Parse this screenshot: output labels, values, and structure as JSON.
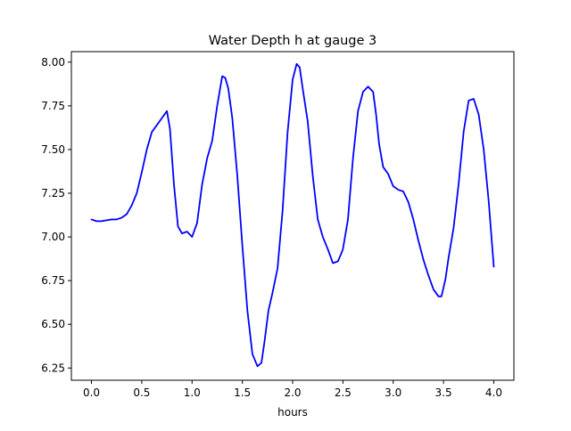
{
  "chart_data": {
    "type": "line",
    "title": "Water Depth h at gauge 3",
    "xlabel": "hours",
    "ylabel": "",
    "xlim": [
      -0.2,
      4.2
    ],
    "ylim": [
      6.18,
      8.06
    ],
    "xticks": [
      0.0,
      0.5,
      1.0,
      1.5,
      2.0,
      2.5,
      3.0,
      3.5,
      4.0
    ],
    "xtick_labels": [
      "0.0",
      "0.5",
      "1.0",
      "1.5",
      "2.0",
      "2.5",
      "3.0",
      "3.5",
      "4.0"
    ],
    "yticks": [
      6.25,
      6.5,
      6.75,
      7.0,
      7.25,
      7.5,
      7.75,
      8.0
    ],
    "ytick_labels": [
      "6.25",
      "6.50",
      "6.75",
      "7.00",
      "7.25",
      "7.50",
      "7.75",
      "8.00"
    ],
    "grid": false,
    "series": [
      {
        "name": "",
        "color": "#0000ff",
        "x": [
          0.0,
          0.05,
          0.1,
          0.15,
          0.2,
          0.25,
          0.3,
          0.35,
          0.4,
          0.45,
          0.5,
          0.55,
          0.6,
          0.65,
          0.7,
          0.75,
          0.78,
          0.82,
          0.86,
          0.9,
          0.95,
          1.0,
          1.05,
          1.1,
          1.15,
          1.2,
          1.25,
          1.3,
          1.33,
          1.36,
          1.4,
          1.45,
          1.5,
          1.55,
          1.6,
          1.65,
          1.69,
          1.72,
          1.76,
          1.8,
          1.85,
          1.9,
          1.95,
          2.0,
          2.04,
          2.07,
          2.1,
          2.15,
          2.2,
          2.25,
          2.3,
          2.35,
          2.4,
          2.45,
          2.48,
          2.5,
          2.55,
          2.6,
          2.65,
          2.7,
          2.75,
          2.8,
          2.83,
          2.86,
          2.9,
          2.95,
          3.0,
          3.05,
          3.1,
          3.15,
          3.2,
          3.25,
          3.3,
          3.35,
          3.4,
          3.45,
          3.48,
          3.52,
          3.55,
          3.6,
          3.65,
          3.7,
          3.75,
          3.8,
          3.85,
          3.9,
          3.95,
          4.0
        ],
        "y": [
          7.1,
          7.09,
          7.09,
          7.095,
          7.1,
          7.1,
          7.11,
          7.13,
          7.18,
          7.25,
          7.37,
          7.5,
          7.6,
          7.64,
          7.68,
          7.72,
          7.62,
          7.3,
          7.06,
          7.02,
          7.03,
          7.0,
          7.08,
          7.3,
          7.45,
          7.55,
          7.75,
          7.92,
          7.91,
          7.85,
          7.68,
          7.35,
          6.95,
          6.58,
          6.33,
          6.26,
          6.28,
          6.4,
          6.58,
          6.68,
          6.82,
          7.15,
          7.6,
          7.9,
          7.99,
          7.97,
          7.85,
          7.66,
          7.35,
          7.1,
          7.0,
          6.93,
          6.85,
          6.86,
          6.9,
          6.93,
          7.1,
          7.45,
          7.72,
          7.83,
          7.86,
          7.83,
          7.7,
          7.53,
          7.4,
          7.36,
          7.29,
          7.27,
          7.26,
          7.2,
          7.1,
          6.98,
          6.87,
          6.78,
          6.7,
          6.66,
          6.66,
          6.76,
          6.88,
          7.05,
          7.3,
          7.6,
          7.78,
          7.79,
          7.7,
          7.5,
          7.2,
          6.83
        ]
      }
    ]
  }
}
